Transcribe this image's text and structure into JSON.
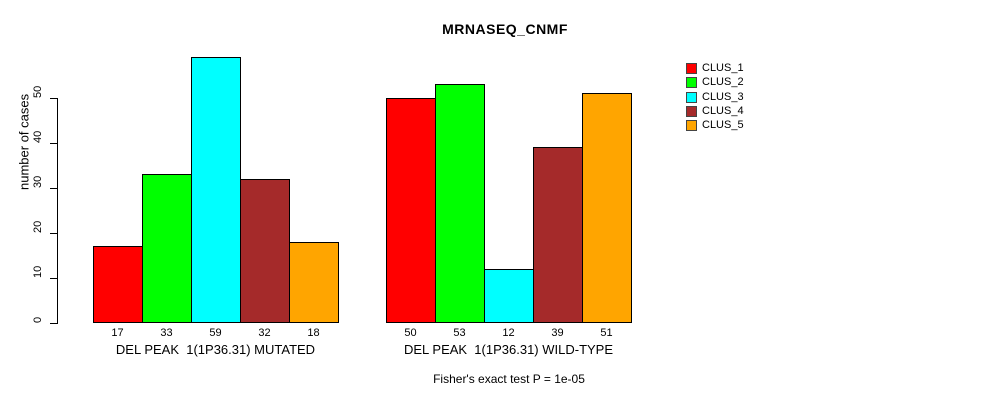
{
  "title": "MRNASEQ_CNMF",
  "footnote": "Fisher's exact test P = 1e-05",
  "chart_data": {
    "type": "bar",
    "title": "MRNASEQ_CNMF",
    "xlabel": "",
    "ylabel": "number of cases",
    "ylim": [
      0,
      50
    ],
    "yticks": [
      0,
      10,
      20,
      30,
      40,
      50
    ],
    "grid": false,
    "legend_position": "right",
    "legend": [
      "CLUS_1",
      "CLUS_2",
      "CLUS_3",
      "CLUS_4",
      "CLUS_5"
    ],
    "colors": [
      "#FF0000",
      "#00FF00",
      "#00FFFF",
      "#A52A2A",
      "#FFA500"
    ],
    "bar_border_color": "#000000",
    "groups": [
      {
        "label": "DEL PEAK  1(1P36.31) MUTATED",
        "values": [
          17,
          33,
          59,
          32,
          18
        ]
      },
      {
        "label": "DEL PEAK  1(1P36.31) WILD-TYPE",
        "values": [
          50,
          53,
          12,
          39,
          51
        ]
      }
    ],
    "annotation": "Fisher's exact test P = 1e-05"
  }
}
